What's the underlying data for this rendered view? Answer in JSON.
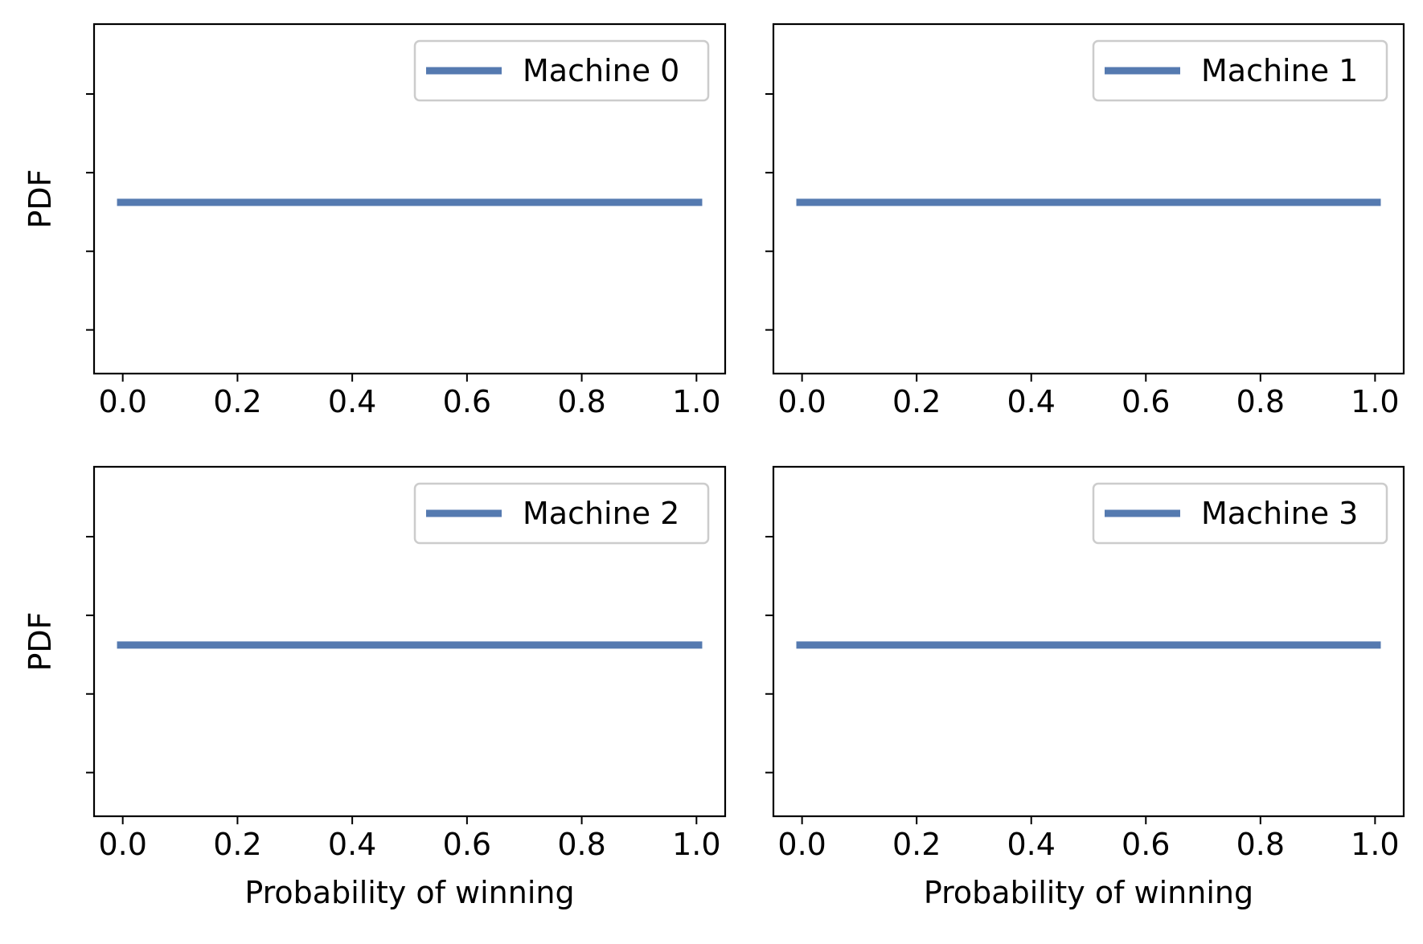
{
  "chart_data": [
    {
      "type": "line",
      "title": "",
      "xlabel": "",
      "ylabel": "PDF",
      "xlim": [
        -0.05,
        1.05
      ],
      "ylim": [
        0,
        1
      ],
      "xticks": [
        0.0,
        0.2,
        0.4,
        0.6,
        0.8,
        1.0
      ],
      "xtick_labels": [
        "0.0",
        "0.2",
        "0.4",
        "0.6",
        "0.8",
        "1.0"
      ],
      "yticks": [
        0.125,
        0.35,
        0.575,
        0.8
      ],
      "ytick_labels": [],
      "grid": false,
      "legend_position": "upper right",
      "series": [
        {
          "name": "Machine 0",
          "color": "#557ab0",
          "x": [
            -0.01,
            1.01
          ],
          "y": [
            0.49,
            0.49
          ]
        }
      ]
    },
    {
      "type": "line",
      "title": "",
      "xlabel": "",
      "ylabel": "",
      "xlim": [
        -0.05,
        1.05
      ],
      "ylim": [
        0,
        1
      ],
      "xticks": [
        0.0,
        0.2,
        0.4,
        0.6,
        0.8,
        1.0
      ],
      "xtick_labels": [
        "0.0",
        "0.2",
        "0.4",
        "0.6",
        "0.8",
        "1.0"
      ],
      "yticks": [
        0.125,
        0.35,
        0.575,
        0.8
      ],
      "ytick_labels": [],
      "grid": false,
      "legend_position": "upper right",
      "series": [
        {
          "name": "Machine 1",
          "color": "#557ab0",
          "x": [
            -0.01,
            1.01
          ],
          "y": [
            0.49,
            0.49
          ]
        }
      ]
    },
    {
      "type": "line",
      "title": "",
      "xlabel": "Probability of winning",
      "ylabel": "PDF",
      "xlim": [
        -0.05,
        1.05
      ],
      "ylim": [
        0,
        1
      ],
      "xticks": [
        0.0,
        0.2,
        0.4,
        0.6,
        0.8,
        1.0
      ],
      "xtick_labels": [
        "0.0",
        "0.2",
        "0.4",
        "0.6",
        "0.8",
        "1.0"
      ],
      "yticks": [
        0.125,
        0.35,
        0.575,
        0.8
      ],
      "ytick_labels": [],
      "grid": false,
      "legend_position": "upper right",
      "series": [
        {
          "name": "Machine 2",
          "color": "#557ab0",
          "x": [
            -0.01,
            1.01
          ],
          "y": [
            0.49,
            0.49
          ]
        }
      ]
    },
    {
      "type": "line",
      "title": "",
      "xlabel": "Probability of winning",
      "ylabel": "",
      "xlim": [
        -0.05,
        1.05
      ],
      "ylim": [
        0,
        1
      ],
      "xticks": [
        0.0,
        0.2,
        0.4,
        0.6,
        0.8,
        1.0
      ],
      "xtick_labels": [
        "0.0",
        "0.2",
        "0.4",
        "0.6",
        "0.8",
        "1.0"
      ],
      "yticks": [
        0.125,
        0.35,
        0.575,
        0.8
      ],
      "ytick_labels": [],
      "grid": false,
      "legend_position": "upper right",
      "series": [
        {
          "name": "Machine 3",
          "color": "#557ab0",
          "x": [
            -0.01,
            1.01
          ],
          "y": [
            0.49,
            0.49
          ]
        }
      ]
    }
  ]
}
